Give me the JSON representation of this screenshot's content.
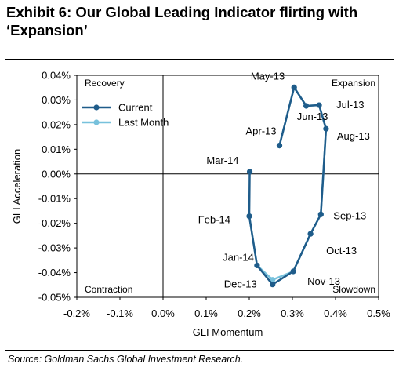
{
  "header": {
    "title": "Exhibit 6: Our Global Leading Indicator flirting with ‘Expansion’"
  },
  "footer": {
    "source": "Source: Goldman Sachs Global Investment Research."
  },
  "chart_data": {
    "type": "scatter",
    "title": "Exhibit 6: Our Global Leading Indicator flirting with ‘Expansion’",
    "xlabel": "GLI Momentum",
    "ylabel": "GLI Acceleration",
    "xlim": [
      -0.2,
      0.5
    ],
    "ylim": [
      -0.05,
      0.04
    ],
    "x_ticks": [
      -0.2,
      -0.1,
      0.0,
      0.1,
      0.2,
      0.3,
      0.4,
      0.5
    ],
    "x_tick_labels": [
      "-0.2%",
      "-0.1%",
      "0.0%",
      "0.1%",
      "0.2%",
      "0.3%",
      "0.4%",
      "0.5%"
    ],
    "y_ticks": [
      0.04,
      0.03,
      0.02,
      0.01,
      0.0,
      -0.01,
      -0.02,
      -0.03,
      -0.04,
      -0.05
    ],
    "y_tick_labels": [
      "0.04%",
      "0.03%",
      "0.02%",
      "0.01%",
      "0.00%",
      "-0.01%",
      "-0.02%",
      "-0.03%",
      "-0.04%",
      "-0.05%"
    ],
    "grid": false,
    "legend_position": "top-left",
    "quadrant_labels": {
      "top_left": "Recovery",
      "top_right": "Expansion",
      "bottom_left": "Contraction",
      "bottom_right": "Slowdown"
    },
    "series": [
      {
        "name": "Current",
        "color": "#1f5c8a",
        "points": [
          {
            "label": "Apr-13",
            "x": 0.27,
            "y": 0.0115
          },
          {
            "label": "May-13",
            "x": 0.304,
            "y": 0.0351
          },
          {
            "label": "Jun-13",
            "x": 0.332,
            "y": 0.0276
          },
          {
            "label": "Jul-13",
            "x": 0.362,
            "y": 0.0279
          },
          {
            "label": "Aug-13",
            "x": 0.378,
            "y": 0.0183
          },
          {
            "label": "Sep-13",
            "x": 0.366,
            "y": -0.0164
          },
          {
            "label": "Oct-13",
            "x": 0.342,
            "y": -0.0243
          },
          {
            "label": "Nov-13",
            "x": 0.302,
            "y": -0.0395
          },
          {
            "label": "Dec-13",
            "x": 0.254,
            "y": -0.0448
          },
          {
            "label": "Jan-14",
            "x": 0.218,
            "y": -0.0371
          },
          {
            "label": "Feb-14",
            "x": 0.2,
            "y": -0.0171
          },
          {
            "label": "Mar-14",
            "x": 0.201,
            "y": 0.0009
          }
        ]
      },
      {
        "name": "Last Month",
        "color": "#77c1dc",
        "points": [
          {
            "label": "Apr-13",
            "x": 0.27,
            "y": 0.0115
          },
          {
            "label": "May-13",
            "x": 0.304,
            "y": 0.0351
          },
          {
            "label": "Jun-13",
            "x": 0.332,
            "y": 0.0276
          },
          {
            "label": "Jul-13",
            "x": 0.362,
            "y": 0.0279
          },
          {
            "label": "Aug-13",
            "x": 0.378,
            "y": 0.0183
          },
          {
            "label": "Sep-13",
            "x": 0.366,
            "y": -0.0164
          },
          {
            "label": "Oct-13",
            "x": 0.342,
            "y": -0.0243
          },
          {
            "label": "Nov-13",
            "x": 0.302,
            "y": -0.0395
          },
          {
            "label": "Dec-13",
            "x": 0.254,
            "y": -0.0429
          },
          {
            "label": "Jan-14",
            "x": 0.218,
            "y": -0.0371
          },
          {
            "label": "Feb-14",
            "x": 0.2,
            "y": -0.0171
          }
        ]
      }
    ]
  }
}
